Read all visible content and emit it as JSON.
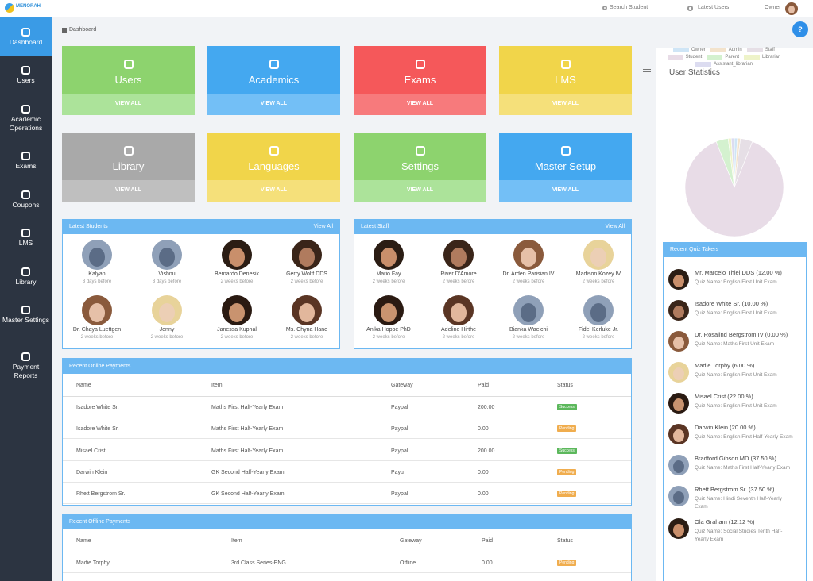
{
  "topbar": {
    "logo": "MENORAH",
    "search": "Search Student",
    "latest_users": "Latest Users",
    "user": "Owner"
  },
  "sidebar": [
    "Dashboard",
    "Users",
    "Academic Operations",
    "Exams",
    "Coupons",
    "LMS",
    "Library",
    "Master Settings",
    "Payment Reports"
  ],
  "breadcrumb": "Dashboard",
  "help": "?",
  "tiles": [
    {
      "title": "Users",
      "action": "VIEW ALL",
      "color": "#8dd36e",
      "footer_color": "#ace39a"
    },
    {
      "title": "Academics",
      "action": "VIEW ALL",
      "color": "#44a8f0",
      "footer_color": "#73bff6"
    },
    {
      "title": "Exams",
      "action": "VIEW ALL",
      "color": "#f5585a",
      "footer_color": "#f77a7c"
    },
    {
      "title": "LMS",
      "action": "VIEW ALL",
      "color": "#f1d54a",
      "footer_color": "#f5e07a"
    },
    {
      "title": "Library",
      "action": "VIEW ALL",
      "color": "#a9a9a9",
      "footer_color": "#bfbfbf"
    },
    {
      "title": "Languages",
      "action": "VIEW ALL",
      "color": "#f1d54a",
      "footer_color": "#f5e07a"
    },
    {
      "title": "Settings",
      "action": "VIEW ALL",
      "color": "#8dd36e",
      "footer_color": "#ace39a"
    },
    {
      "title": "Master Setup",
      "action": "VIEW ALL",
      "color": "#44a8f0",
      "footer_color": "#73bff6"
    }
  ],
  "latest_students": {
    "title": "Latest Students",
    "action": "View All",
    "people": [
      {
        "name": "Kalyan",
        "time": "3 days before"
      },
      {
        "name": "Vishnu",
        "time": "3 days before"
      },
      {
        "name": "Bernardo Denesik",
        "time": "2 weeks before"
      },
      {
        "name": "Gerry Wolff DDS",
        "time": "2 weeks before"
      },
      {
        "name": "Dr. Chaya Luettgen",
        "time": "2 weeks before"
      },
      {
        "name": "Jenny",
        "time": "2 weeks before"
      },
      {
        "name": "Janessa Kuphal",
        "time": "2 weeks before"
      },
      {
        "name": "Ms. Chyna Hane",
        "time": "2 weeks before"
      }
    ]
  },
  "latest_staff": {
    "title": "Latest Staff",
    "action": "View All",
    "people": [
      {
        "name": "Mario Fay",
        "time": "2 weeks before"
      },
      {
        "name": "River D'Amore",
        "time": "2 weeks before"
      },
      {
        "name": "Dr. Arden Parisian IV",
        "time": "2 weeks before"
      },
      {
        "name": "Madison Kozey IV",
        "time": "2 weeks before"
      },
      {
        "name": "Anika Hoppe PhD",
        "time": "2 weeks before"
      },
      {
        "name": "Adeline Hirthe",
        "time": "2 weeks before"
      },
      {
        "name": "Bianka Waelchi",
        "time": "2 weeks before"
      },
      {
        "name": "Fidel Kerluke Jr.",
        "time": "2 weeks before"
      }
    ]
  },
  "online_payments": {
    "title": "Recent Online Payments",
    "columns": [
      "Name",
      "Item",
      "Gateway",
      "Paid",
      "Status"
    ],
    "rows": [
      {
        "name": "Isadore White Sr.",
        "item": "Maths First Half-Yearly Exam",
        "gateway": "Paypal",
        "paid": "200.00",
        "status": "Success",
        "status_color": "#5cb85c"
      },
      {
        "name": "Isadore White Sr.",
        "item": "Maths First Half-Yearly Exam",
        "gateway": "Paypal",
        "paid": "0.00",
        "status": "Pending",
        "status_color": "#f0ad4e"
      },
      {
        "name": "Misael Crist",
        "item": "Maths First Half-Yearly Exam",
        "gateway": "Paypal",
        "paid": "200.00",
        "status": "Success",
        "status_color": "#5cb85c"
      },
      {
        "name": "Darwin Klein",
        "item": "GK Second Half-Yearly Exam",
        "gateway": "Payu",
        "paid": "0.00",
        "status": "Pending",
        "status_color": "#f0ad4e"
      },
      {
        "name": "Rhett Bergstrom Sr.",
        "item": "GK Second Half-Yearly Exam",
        "gateway": "Paypal",
        "paid": "0.00",
        "status": "Pending",
        "status_color": "#f0ad4e"
      }
    ]
  },
  "offline_payments": {
    "title": "Recent Offline Payments",
    "columns": [
      "Name",
      "Item",
      "Gateway",
      "Paid",
      "Status"
    ],
    "rows": [
      {
        "name": "Madie Torphy",
        "item": "3rd Class Series-ENG",
        "gateway": "Offline",
        "paid": "0.00",
        "status": "Pending",
        "status_color": "#f0ad4e"
      }
    ]
  },
  "chart_data": {
    "type": "pie",
    "title": "User Statistics",
    "categories": [
      "Owner",
      "Admin",
      "Staff",
      "Student",
      "Parent",
      "Librarian",
      "Assistant_librarian"
    ],
    "values": [
      1,
      1,
      4,
      88,
      4,
      1,
      1
    ],
    "colors": [
      "#cfe5f6",
      "#f3e3cc",
      "#e6dfe6",
      "#e8dce7",
      "#d4f1cf",
      "#eef3c9",
      "#dcdcf0"
    ]
  },
  "quiz_takers": {
    "title": "Recent Quiz Takers",
    "items": [
      {
        "name": "Mr. Marcelo Thiel DDS (12.00 %)",
        "quiz": "Quiz Name: English First Unit Exam"
      },
      {
        "name": "Isadore White Sr. (10.00 %)",
        "quiz": "Quiz Name: English First Unit Exam"
      },
      {
        "name": "Dr. Rosalind Bergstrom IV (0.00 %)",
        "quiz": "Quiz Name: Maths First Unit Exam"
      },
      {
        "name": "Madie Torphy (6.00 %)",
        "quiz": "Quiz Name: English First Unit Exam"
      },
      {
        "name": "Misael Crist (22.00 %)",
        "quiz": "Quiz Name: English First Unit Exam"
      },
      {
        "name": "Darwin Klein (20.00 %)",
        "quiz": "Quiz Name: English First Half-Yearly Exam"
      },
      {
        "name": "Bradford Gibson MD (37.50 %)",
        "quiz": "Quiz Name: Maths First Half-Yearly Exam"
      },
      {
        "name": "Rhett Bergstrom Sr. (37.50 %)",
        "quiz": "Quiz Name: Hindi Seventh Half-Yearly Exam"
      },
      {
        "name": "Ola Graham (12.12 %)",
        "quiz": "Quiz Name: Social Studies Tenth Half-Yearly Exam"
      }
    ]
  }
}
